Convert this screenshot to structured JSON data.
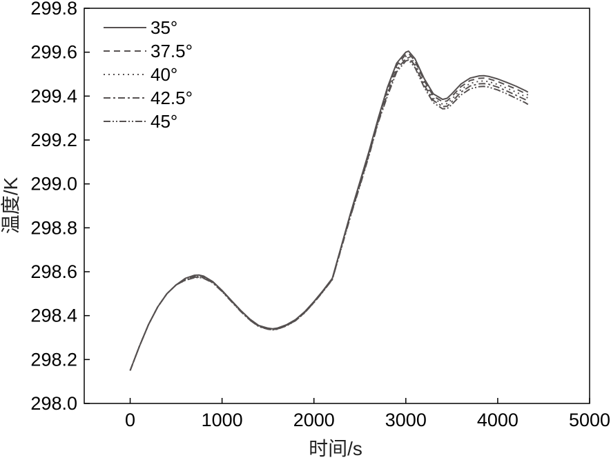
{
  "chart_data": {
    "type": "line",
    "title": "",
    "xlabel": "时间/s",
    "ylabel": "温度/K",
    "xlim": [
      -500,
      5000
    ],
    "ylim": [
      298.0,
      299.8
    ],
    "x_ticks": [
      "0",
      "1000",
      "2000",
      "3000",
      "4000",
      "5000"
    ],
    "y_ticks": [
      "298.0",
      "298.2",
      "298.4",
      "298.6",
      "298.8",
      "299.0",
      "299.2",
      "299.4",
      "299.6",
      "299.8"
    ],
    "grid": false,
    "legend_position": "top-left",
    "x": [
      0,
      100,
      200,
      300,
      400,
      500,
      600,
      700,
      750,
      800,
      900,
      1000,
      1100,
      1200,
      1300,
      1400,
      1500,
      1550,
      1600,
      1700,
      1800,
      1900,
      2000,
      2100,
      2200,
      2300,
      2400,
      2500,
      2600,
      2700,
      2800,
      2900,
      3000,
      3030,
      3100,
      3200,
      3300,
      3400,
      3450,
      3500,
      3600,
      3700,
      3800,
      3850,
      3900,
      4000,
      4100,
      4200,
      4300,
      4330
    ],
    "series": [
      {
        "name": "35°",
        "values": [
          298.15,
          298.26,
          298.36,
          298.44,
          298.5,
          298.54,
          298.57,
          298.584,
          298.585,
          298.58,
          298.555,
          298.515,
          298.47,
          298.425,
          298.385,
          298.355,
          298.343,
          298.34,
          298.343,
          298.358,
          298.382,
          298.418,
          298.464,
          298.515,
          298.57,
          298.72,
          298.87,
          299.01,
          299.15,
          299.3,
          299.44,
          299.55,
          299.6,
          299.605,
          299.57,
          299.48,
          299.41,
          299.385,
          299.39,
          299.41,
          299.455,
          299.482,
          299.492,
          299.493,
          299.49,
          299.478,
          299.462,
          299.445,
          299.425,
          299.418
        ]
      },
      {
        "name": "37.5°",
        "values": [
          298.15,
          298.26,
          298.36,
          298.44,
          298.5,
          298.54,
          298.566,
          298.58,
          298.581,
          298.577,
          298.553,
          298.513,
          298.468,
          298.423,
          298.383,
          298.353,
          298.341,
          298.338,
          298.341,
          298.356,
          298.38,
          298.416,
          298.462,
          298.513,
          298.567,
          298.717,
          298.867,
          299.005,
          299.145,
          299.295,
          299.43,
          299.54,
          299.59,
          299.595,
          299.56,
          299.47,
          299.4,
          299.374,
          299.378,
          299.398,
          299.443,
          299.471,
          299.481,
          299.482,
          299.479,
          299.466,
          299.449,
          299.432,
          299.412,
          299.405
        ]
      },
      {
        "name": "40°",
        "values": [
          298.15,
          298.26,
          298.36,
          298.44,
          298.5,
          298.54,
          298.563,
          298.577,
          298.578,
          298.574,
          298.551,
          298.512,
          298.467,
          298.422,
          298.382,
          298.352,
          298.34,
          298.337,
          298.34,
          298.355,
          298.379,
          298.415,
          298.461,
          298.512,
          298.566,
          298.714,
          298.862,
          299.0,
          299.14,
          299.29,
          299.42,
          299.53,
          299.58,
          299.585,
          299.55,
          299.46,
          299.39,
          299.363,
          299.366,
          299.386,
          299.43,
          299.458,
          299.468,
          299.469,
          299.466,
          299.453,
          299.436,
          299.418,
          299.398,
          299.391
        ]
      },
      {
        "name": "42.5°",
        "values": [
          298.15,
          298.26,
          298.36,
          298.44,
          298.5,
          298.54,
          298.562,
          298.575,
          298.576,
          298.572,
          298.55,
          298.511,
          298.466,
          298.421,
          298.381,
          298.351,
          298.339,
          298.336,
          298.339,
          298.354,
          298.378,
          298.414,
          298.46,
          298.511,
          298.565,
          298.712,
          298.858,
          298.995,
          299.135,
          299.285,
          299.41,
          299.52,
          299.57,
          299.575,
          299.54,
          299.45,
          299.38,
          299.352,
          299.354,
          299.374,
          299.418,
          299.446,
          299.456,
          299.457,
          299.454,
          299.441,
          299.423,
          299.404,
          299.384,
          299.377
        ]
      },
      {
        "name": "45°",
        "values": [
          298.15,
          298.26,
          298.36,
          298.44,
          298.5,
          298.54,
          298.561,
          298.573,
          298.574,
          298.57,
          298.549,
          298.51,
          298.465,
          298.42,
          298.38,
          298.35,
          298.338,
          298.335,
          298.338,
          298.353,
          298.377,
          298.413,
          298.459,
          298.51,
          298.564,
          298.71,
          298.855,
          298.99,
          299.13,
          299.28,
          299.4,
          299.51,
          299.56,
          299.565,
          299.53,
          299.44,
          299.37,
          299.342,
          299.343,
          299.362,
          299.405,
          299.433,
          299.443,
          299.444,
          299.441,
          299.428,
          299.41,
          299.39,
          299.37,
          299.362
        ]
      }
    ]
  }
}
